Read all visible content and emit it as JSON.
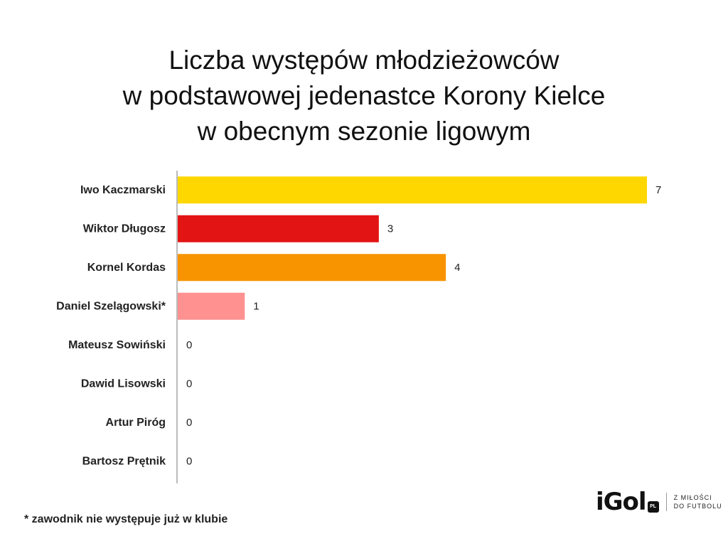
{
  "chart_data": {
    "type": "bar",
    "orientation": "horizontal",
    "title": [
      "Liczba występów młodzieżowców",
      "w podstawowej jedenastce Korony Kielce",
      "w obecnym sezonie ligowym"
    ],
    "categories": [
      "Iwo Kaczmarski",
      "Wiktor Długosz",
      "Kornel Kordas",
      "Daniel Szelągowski*",
      "Mateusz Sowiński",
      "Dawid Lisowski",
      "Artur Piróg",
      "Bartosz Prętnik"
    ],
    "values": [
      7,
      3,
      4,
      1,
      0,
      0,
      0,
      0
    ],
    "colors": [
      "#FFD700",
      "#E31414",
      "#F79400",
      "#FF9190",
      "#FFD700",
      "#FFD700",
      "#FFD700",
      "#FFD700"
    ],
    "xlim": [
      0,
      7
    ],
    "grid": false,
    "legend": "none"
  },
  "footnote": "* zawodnik nie występuje już w klubie",
  "logo": {
    "word": "iGol",
    "badge": "PL",
    "tagline_1": "Z miłości",
    "tagline_2": "do futbolu"
  }
}
